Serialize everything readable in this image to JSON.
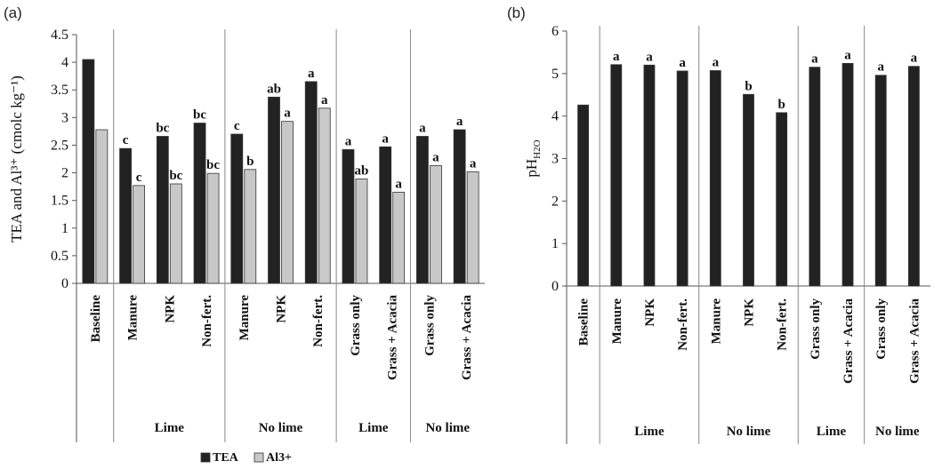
{
  "chart_data": [
    {
      "panel_label": "(a)",
      "type": "bar",
      "ylabel": "TEA and Al³⁺ (cmolc kg⁻¹)",
      "ylim": [
        0,
        4.5
      ],
      "yticks": [
        "0",
        "0.5",
        "1",
        "1.5",
        "2",
        "2.5",
        "3",
        "3.5",
        "4",
        "4.5"
      ],
      "categories": [
        "Baseline",
        "Manure",
        "NPK",
        "Non-fert.",
        "Manure",
        "NPK",
        "Non-fert.",
        "Grass only",
        "Grass + Acacia",
        "Grass only",
        "Grass + Acacia"
      ],
      "groups": [
        {
          "label": "",
          "span": [
            0,
            0
          ]
        },
        {
          "label": "Lime",
          "span": [
            1,
            3
          ]
        },
        {
          "label": "No lime",
          "span": [
            4,
            6
          ]
        },
        {
          "label": "Lime",
          "span": [
            7,
            8
          ]
        },
        {
          "label": "No lime",
          "span": [
            9,
            10
          ]
        }
      ],
      "series": [
        {
          "name": "TEA",
          "color": "#222222",
          "values": [
            4.05,
            2.44,
            2.66,
            2.9,
            2.7,
            3.37,
            3.65,
            2.42,
            2.47,
            2.66,
            2.78
          ],
          "labels": [
            "",
            "c",
            "bc",
            "bc",
            "c",
            "ab",
            "a",
            "a",
            "a",
            "a",
            "a"
          ]
        },
        {
          "name": "Al3+",
          "color": "#c8c8c8",
          "values": [
            2.78,
            1.77,
            1.8,
            1.99,
            2.06,
            2.93,
            3.17,
            1.89,
            1.65,
            2.13,
            2.02
          ],
          "labels": [
            "",
            "c",
            "bc",
            "bc",
            "b",
            "a",
            "a",
            "ab",
            "a",
            "a",
            "a"
          ]
        }
      ],
      "legend_position": "bottom-left"
    },
    {
      "panel_label": "(b)",
      "type": "bar",
      "ylabel": "pH",
      "ylabel_sub": "H2O",
      "ylim": [
        0,
        6
      ],
      "yticks": [
        "0",
        "1",
        "2",
        "3",
        "4",
        "5",
        "6"
      ],
      "categories": [
        "Baseline",
        "Manure",
        "NPK",
        "Non-fert.",
        "Manure",
        "NPK",
        "Non-fert.",
        "Grass only",
        "Grass + Acacia",
        "Grass only",
        "Grass + Acacia"
      ],
      "groups": [
        {
          "label": "",
          "span": [
            0,
            0
          ]
        },
        {
          "label": "Lime",
          "span": [
            1,
            3
          ]
        },
        {
          "label": "No lime",
          "span": [
            4,
            6
          ]
        },
        {
          "label": "Lime",
          "span": [
            7,
            8
          ]
        },
        {
          "label": "No lime",
          "span": [
            9,
            10
          ]
        }
      ],
      "series": [
        {
          "name": "",
          "color": "#222222",
          "values": [
            4.26,
            5.21,
            5.2,
            5.06,
            5.07,
            4.51,
            4.08,
            5.15,
            5.24,
            4.96,
            5.17
          ],
          "labels": [
            "",
            "a",
            "a",
            "a",
            "a",
            "b",
            "b",
            "a",
            "a",
            "a",
            "a"
          ]
        }
      ]
    }
  ]
}
